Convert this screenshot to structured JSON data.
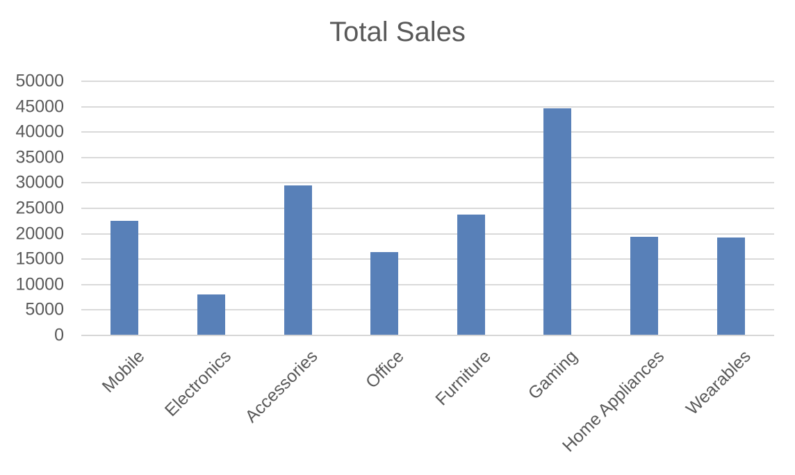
{
  "chart_data": {
    "type": "bar",
    "title": "Total Sales",
    "categories": [
      "Mobile",
      "Electronics",
      "Accessories",
      "Office",
      "Furniture",
      "Gaming",
      "Home Appliances",
      "Wearables"
    ],
    "values": [
      22500,
      8000,
      29500,
      16400,
      23800,
      44700,
      19400,
      19200
    ],
    "xlabel": "",
    "ylabel": "",
    "ylim": [
      0,
      50000
    ],
    "yticks": [
      0,
      5000,
      10000,
      15000,
      20000,
      25000,
      30000,
      35000,
      40000,
      45000,
      50000
    ],
    "x_label_rotation": -45,
    "grid": true,
    "legend": false,
    "series_color": "#5880b8",
    "gridline_color": "#d9d9d9",
    "text_color": "#595959",
    "background_color": "#ffffff"
  }
}
